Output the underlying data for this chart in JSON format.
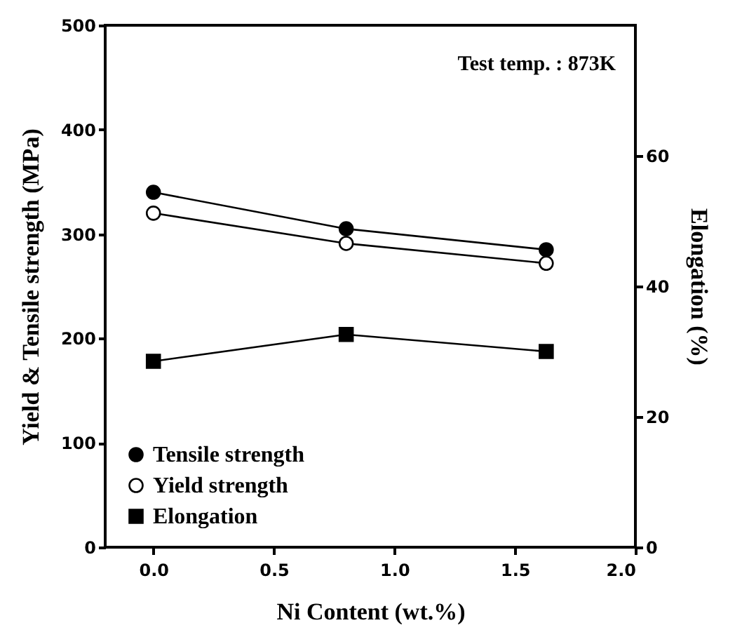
{
  "chart_data": {
    "type": "line",
    "xlabel": "Ni Content (wt.%)",
    "ylabel": "Yield & Tensile strength (MPa)",
    "y2label": "Elongation (%)",
    "annotations": [
      "Test temp. : 873K"
    ],
    "x": [
      0.0,
      0.8,
      1.63
    ],
    "xlim": [
      -0.2,
      2.0
    ],
    "xticks": [
      {
        "value": 0,
        "label": "0.0"
      },
      {
        "value": 0.5,
        "label": "0.5"
      },
      {
        "value": 1,
        "label": "1.0"
      },
      {
        "value": 1.5,
        "label": "1.5"
      },
      {
        "value": 2,
        "label": "2.0"
      }
    ],
    "ylim": [
      0,
      500
    ],
    "yticks": [
      0,
      100,
      200,
      300,
      400,
      500
    ],
    "y2lim": [
      0,
      80
    ],
    "y2ticks": [
      0,
      20,
      40,
      60
    ],
    "grid": false,
    "legend": "bottom left",
    "line_style": "solid",
    "series": [
      {
        "name": "Tensile strength",
        "color": "#000000",
        "marker": "circle",
        "values": [
          340,
          305,
          285
        ]
      },
      {
        "name": "Yield strength",
        "color": "#000000",
        "marker": "circle",
        "values": [
          320,
          291,
          272
        ]
      },
      {
        "name": "Elongation",
        "color": "#000000",
        "marker": "square",
        "axis": "y2",
        "values": [
          28.5,
          32.6,
          30.0
        ]
      }
    ]
  }
}
